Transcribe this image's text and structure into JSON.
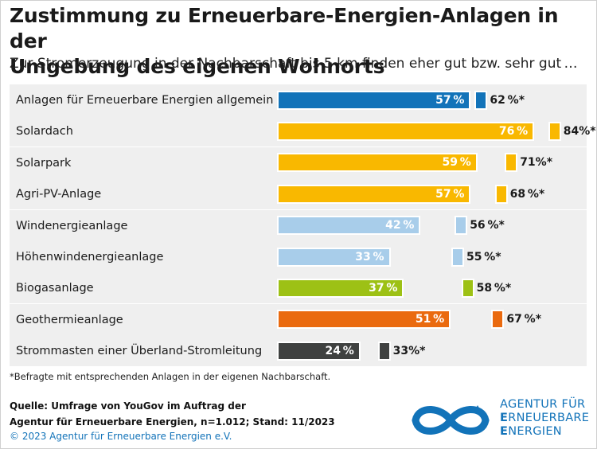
{
  "title_line1": "Zustimmung zu Erneuerbare-Energien-Anlagen in der",
  "title_line2": "Umgebung des eigenen Wohnorts",
  "subtitle": "Zur Stromerzeugung in der Nachbarschaft bis 5 km finden eher gut bzw. sehr gut …",
  "chart_data": {
    "type": "bar",
    "orientation": "horizontal",
    "categories": [
      "Anlagen für Erneuerbare Energien allgemein",
      "Solardach",
      "Solarpark",
      "Agri-PV-Anlage",
      "Windenergieanlage",
      "Höhenwindenergieanlage",
      "Biogasanlage",
      "Geothermieanlage",
      "Strommasten einer Überland-Stromleitung"
    ],
    "series": [
      {
        "values": [
          57,
          76,
          59,
          57,
          42,
          33,
          37,
          51,
          24
        ],
        "labels": [
          "57 %",
          "76 %",
          "59 %",
          "57 %",
          "42 %",
          "33 %",
          "37 %",
          "51 %",
          "24 %"
        ]
      },
      {
        "values": [
          62,
          84,
          71,
          68,
          56,
          55,
          58,
          67,
          33
        ],
        "labels": [
          "62 %*",
          "84%*",
          "71%*",
          "68 %*",
          "56 %*",
          "55 %*",
          "58 %*",
          "67 %*",
          "33%*"
        ]
      }
    ],
    "colors": [
      "#1273b9",
      "#f9b800",
      "#f9b800",
      "#f9b800",
      "#a8cdea",
      "#a8cdea",
      "#9dc115",
      "#ea6a0f",
      "#3f4140"
    ],
    "xlim": [
      0,
      100
    ],
    "grid": false,
    "legend": "none"
  },
  "footnote": "*Befragte mit entsprechenden Anlagen in der eigenen Nachbarschaft.",
  "source_line1": "Quelle: Umfrage von YouGov im Auftrag der",
  "source_line2": "Agentur für Erneuerbare Energien, n=1.012; Stand: 11/2023",
  "copyright": "© 2023 Agentur für Erneuerbare Energien e.V.",
  "logo": {
    "icon": "infinity-icon",
    "color": "#1273b9",
    "line1": "AGENTUR FÜR",
    "line2_first": "E",
    "line2_rest": "RNEUERBARE",
    "line3_first": "E",
    "line3_rest": "NERGIEN"
  }
}
